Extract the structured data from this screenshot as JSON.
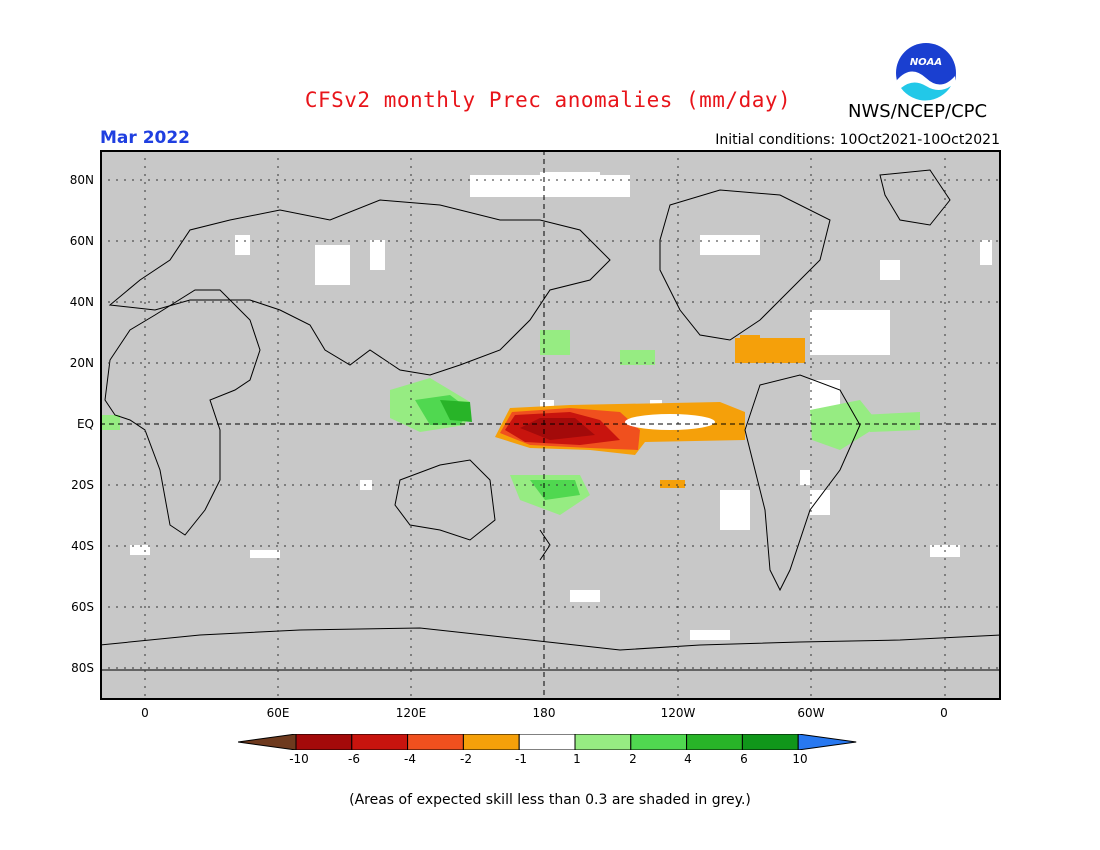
{
  "header": {
    "title": "CFSv2 monthly Prec anomalies (mm/day)",
    "agency": "NWS/NCEP/CPC",
    "month": "Mar 2022",
    "initial_conditions": "Initial conditions: 10Oct2021-10Oct2021",
    "logo_text": "NOAA"
  },
  "map": {
    "lat_labels": [
      "80N",
      "60N",
      "40N",
      "20N",
      "EQ",
      "20S",
      "40S",
      "60S",
      "80S"
    ],
    "lon_labels": [
      "0",
      "60E",
      "120E",
      "180",
      "120W",
      "60W",
      "0"
    ]
  },
  "legend": {
    "labels": [
      "-10",
      "-6",
      "-4",
      "-2",
      "-1",
      "1",
      "2",
      "4",
      "6",
      "10"
    ],
    "colors": [
      "#6e3a1e",
      "#a30a0a",
      "#c8140e",
      "#f0501e",
      "#f5a00a",
      "#ffffff",
      "#96ec82",
      "#50d850",
      "#28b428",
      "#10961a",
      "#2878f0"
    ],
    "note": "(Areas of expected skill less than 0.3 are shaded in grey.)"
  },
  "colors": {
    "title": "#e8141a",
    "month": "#1f3fe0",
    "map_background": "#c8c8c8"
  }
}
